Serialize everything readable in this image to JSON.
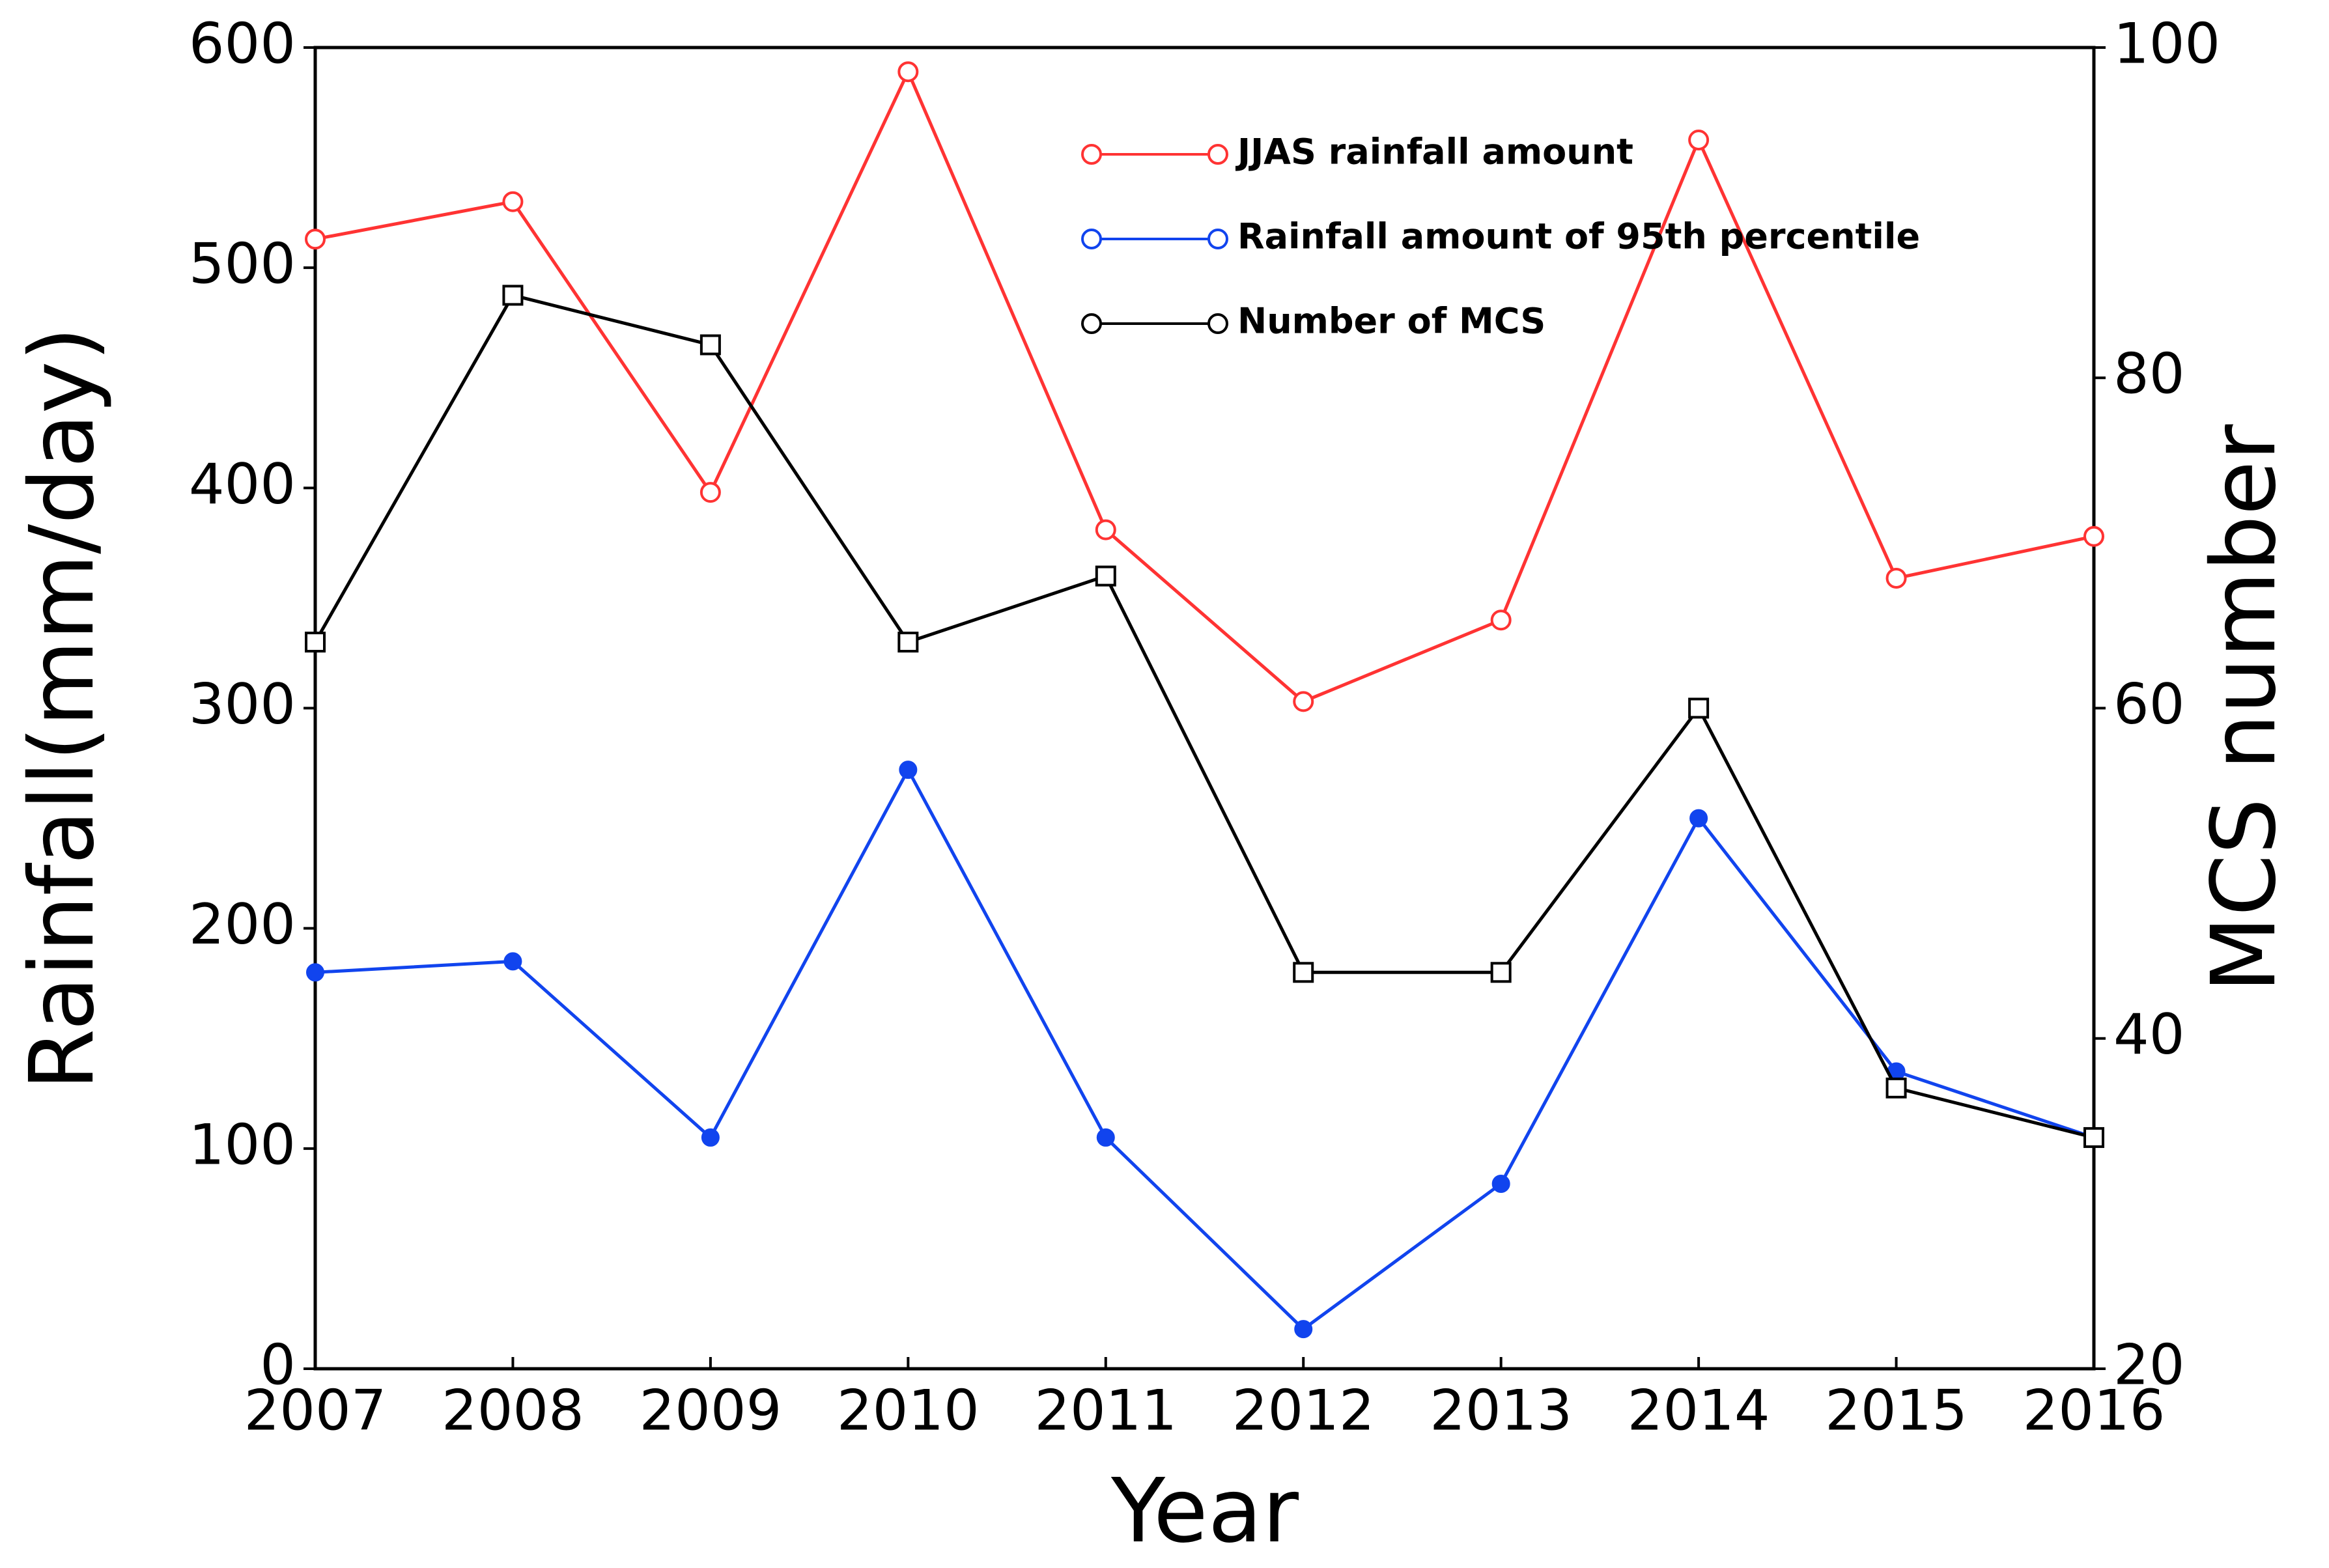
{
  "chart_data": {
    "type": "line",
    "x": [
      2007,
      2008,
      2009,
      2010,
      2011,
      2012,
      2013,
      2014,
      2015,
      2016
    ],
    "xlabel": "Year",
    "ylabel": "Rainfall(mm/day)",
    "y2label": "MCS number",
    "xlim": [
      2007,
      2016
    ],
    "xticks": [
      2007,
      2008,
      2009,
      2010,
      2011,
      2012,
      2013,
      2014,
      2015,
      2016
    ],
    "ylim": [
      0,
      600
    ],
    "yticks": [
      0,
      100,
      200,
      300,
      400,
      500,
      600
    ],
    "y2lim": [
      20,
      100
    ],
    "y2ticks": [
      20,
      40,
      60,
      80,
      100
    ],
    "legend": "top-right",
    "series": [
      {
        "name": "JJAS rainfall amount",
        "color": "#ff3333",
        "marker": "open-circle",
        "axis": "y",
        "values": [
          513,
          530,
          398,
          589,
          381,
          303,
          340,
          558,
          359,
          378
        ]
      },
      {
        "name": "Rainfall amount of 95th percentile",
        "color": "#1144ee",
        "marker": "filled-circle",
        "axis": "y",
        "values": [
          180,
          185,
          105,
          272,
          105,
          18,
          84,
          250,
          135,
          105
        ]
      },
      {
        "name": "Number of MCS",
        "color": "#000000",
        "marker": "square",
        "axis": "y2",
        "values": [
          64,
          85,
          82,
          64,
          68,
          44,
          44,
          60,
          37,
          34
        ]
      }
    ]
  }
}
